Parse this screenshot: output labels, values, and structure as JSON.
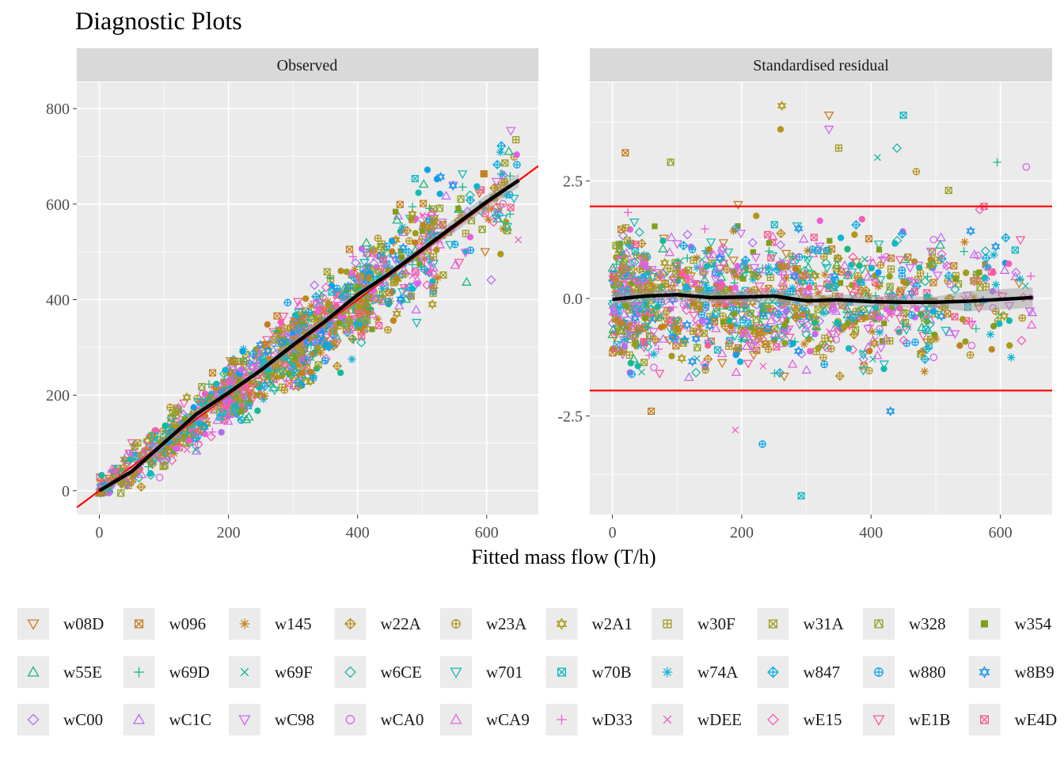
{
  "title": "Diagnostic Plots",
  "xlabel": "Fitted mass flow (T/h)",
  "colors": {
    "panel_bg": "#ebebeb",
    "strip_bg": "#d9d9d9",
    "grid": "#ffffff",
    "ref_line": "#ff0000",
    "smooth_line": "#000000"
  },
  "legend_items": [
    {
      "label": "w08D",
      "color": "#c77c1e",
      "shape": "triangle-down"
    },
    {
      "label": "w096",
      "color": "#c27d1d",
      "shape": "square-x"
    },
    {
      "label": "w145",
      "color": "#c1821c",
      "shape": "asterisk"
    },
    {
      "label": "w22A",
      "color": "#b98a1d",
      "shape": "diamond-plus"
    },
    {
      "label": "w23A",
      "color": "#b5921c",
      "shape": "circle-plus"
    },
    {
      "label": "w2A1",
      "color": "#ad9a18",
      "shape": "star-david"
    },
    {
      "label": "w30F",
      "color": "#a39a1f",
      "shape": "square-plus"
    },
    {
      "label": "w31A",
      "color": "#9a9f21",
      "shape": "square-x"
    },
    {
      "label": "w328",
      "color": "#8fa11f",
      "shape": "square-triangle"
    },
    {
      "label": "w354",
      "color": "#7f9f1a",
      "shape": "square-filled"
    },
    {
      "label": "w55E",
      "color": "#1ab67a",
      "shape": "triangle-up"
    },
    {
      "label": "w69D",
      "color": "#18b78a",
      "shape": "plus"
    },
    {
      "label": "w69F",
      "color": "#17b99a",
      "shape": "cross"
    },
    {
      "label": "w6CE",
      "color": "#16baa8",
      "shape": "diamond"
    },
    {
      "label": "w701",
      "color": "#14bbb6",
      "shape": "triangle-down"
    },
    {
      "label": "w70B",
      "color": "#12b8c5",
      "shape": "square-x"
    },
    {
      "label": "w74A",
      "color": "#10b3d3",
      "shape": "asterisk"
    },
    {
      "label": "w847",
      "color": "#0dacdf",
      "shape": "diamond-plus"
    },
    {
      "label": "w880",
      "color": "#0aa3e8",
      "shape": "circle-plus"
    },
    {
      "label": "w8B9",
      "color": "#1a98ef",
      "shape": "star-david"
    },
    {
      "label": "wC00",
      "color": "#b06ef5",
      "shape": "diamond"
    },
    {
      "label": "wC1C",
      "color": "#c26af4",
      "shape": "triangle-up"
    },
    {
      "label": "wC98",
      "color": "#d066ef",
      "shape": "triangle-down"
    },
    {
      "label": "wCA0",
      "color": "#dc63e8",
      "shape": "circle"
    },
    {
      "label": "wCA9",
      "color": "#e661df",
      "shape": "triangle-up"
    },
    {
      "label": "wD33",
      "color": "#ee5fd3",
      "shape": "plus"
    },
    {
      "label": "wDEE",
      "color": "#f35dc5",
      "shape": "cross"
    },
    {
      "label": "wE15",
      "color": "#f75bb6",
      "shape": "diamond"
    },
    {
      "label": "wE1B",
      "color": "#f95aa5",
      "shape": "triangle-down"
    },
    {
      "label": "wE4D",
      "color": "#fa5a93",
      "shape": "square-x"
    }
  ],
  "chart_data": [
    {
      "type": "scatter",
      "panel": "Observed",
      "x_ticks": [
        "0",
        "200",
        "400",
        "600"
      ],
      "y_ticks": [
        "0",
        "200",
        "400",
        "600",
        "800"
      ],
      "xlim": [
        -35,
        680
      ],
      "ylim": [
        -50,
        855
      ],
      "reference_line": {
        "slope": 1,
        "intercept": 0,
        "color": "#ff0000"
      },
      "smooth": [
        [
          0,
          0
        ],
        [
          50,
          40
        ],
        [
          100,
          100
        ],
        [
          150,
          160
        ],
        [
          200,
          205
        ],
        [
          250,
          252
        ],
        [
          300,
          305
        ],
        [
          350,
          355
        ],
        [
          400,
          410
        ],
        [
          450,
          455
        ],
        [
          500,
          505
        ],
        [
          550,
          555
        ],
        [
          600,
          605
        ],
        [
          650,
          650
        ]
      ],
      "point_clusters": [
        {
          "x_range": [
            0,
            120
          ],
          "y_range": [
            -5,
            150
          ],
          "n": 180
        },
        {
          "x_range": [
            100,
            220
          ],
          "y_range": [
            60,
            300
          ],
          "n": 260
        },
        {
          "x_range": [
            200,
            320
          ],
          "y_range": [
            80,
            400
          ],
          "n": 320
        },
        {
          "x_range": [
            300,
            420
          ],
          "y_range": [
            180,
            560
          ],
          "n": 300
        },
        {
          "x_range": [
            400,
            520
          ],
          "y_range": [
            260,
            640
          ],
          "n": 220
        },
        {
          "x_range": [
            500,
            650
          ],
          "y_range": [
            340,
            780
          ],
          "n": 120
        }
      ]
    },
    {
      "type": "scatter",
      "panel": "Standardised residual",
      "x_ticks": [
        "0",
        "200",
        "400",
        "600"
      ],
      "y_ticks": [
        "-2.5",
        "0.0",
        "2.5"
      ],
      "xlim": [
        -35,
        680
      ],
      "ylim": [
        -4.6,
        4.6
      ],
      "reference_lines_y": [
        -1.96,
        1.96
      ],
      "smooth": [
        [
          0,
          -0.02
        ],
        [
          50,
          0.05
        ],
        [
          100,
          0.08
        ],
        [
          150,
          0.02
        ],
        [
          200,
          0.03
        ],
        [
          250,
          0.05
        ],
        [
          300,
          -0.05
        ],
        [
          350,
          -0.03
        ],
        [
          400,
          -0.07
        ],
        [
          450,
          -0.08
        ],
        [
          500,
          -0.08
        ],
        [
          550,
          -0.06
        ],
        [
          600,
          -0.02
        ],
        [
          650,
          0.02
        ]
      ],
      "point_clusters": [
        {
          "x_range": [
            0,
            60
          ],
          "y_range": [
            -1.9,
            1.9
          ],
          "n": 260
        },
        {
          "x_range": [
            60,
            200
          ],
          "y_range": [
            -2.1,
            2.1
          ],
          "n": 300
        },
        {
          "x_range": [
            200,
            350
          ],
          "y_range": [
            -2.3,
            2.3
          ],
          "n": 320
        },
        {
          "x_range": [
            350,
            500
          ],
          "y_range": [
            -2.0,
            2.0
          ],
          "n": 240
        },
        {
          "x_range": [
            500,
            650
          ],
          "y_range": [
            -1.6,
            1.9
          ],
          "n": 110
        }
      ],
      "outliers": [
        [
          292,
          -4.2
        ],
        [
          262,
          4.1
        ],
        [
          335,
          3.9
        ],
        [
          450,
          3.9
        ],
        [
          335,
          3.6
        ],
        [
          260,
          3.6
        ],
        [
          20,
          3.1
        ],
        [
          90,
          2.9
        ],
        [
          350,
          3.2
        ],
        [
          440,
          3.2
        ],
        [
          410,
          3.0
        ],
        [
          470,
          2.7
        ],
        [
          520,
          2.3
        ],
        [
          640,
          2.8
        ],
        [
          595,
          2.9
        ],
        [
          232,
          -3.1
        ],
        [
          190,
          -2.8
        ],
        [
          60,
          -2.4
        ],
        [
          430,
          -2.4
        ]
      ]
    }
  ]
}
